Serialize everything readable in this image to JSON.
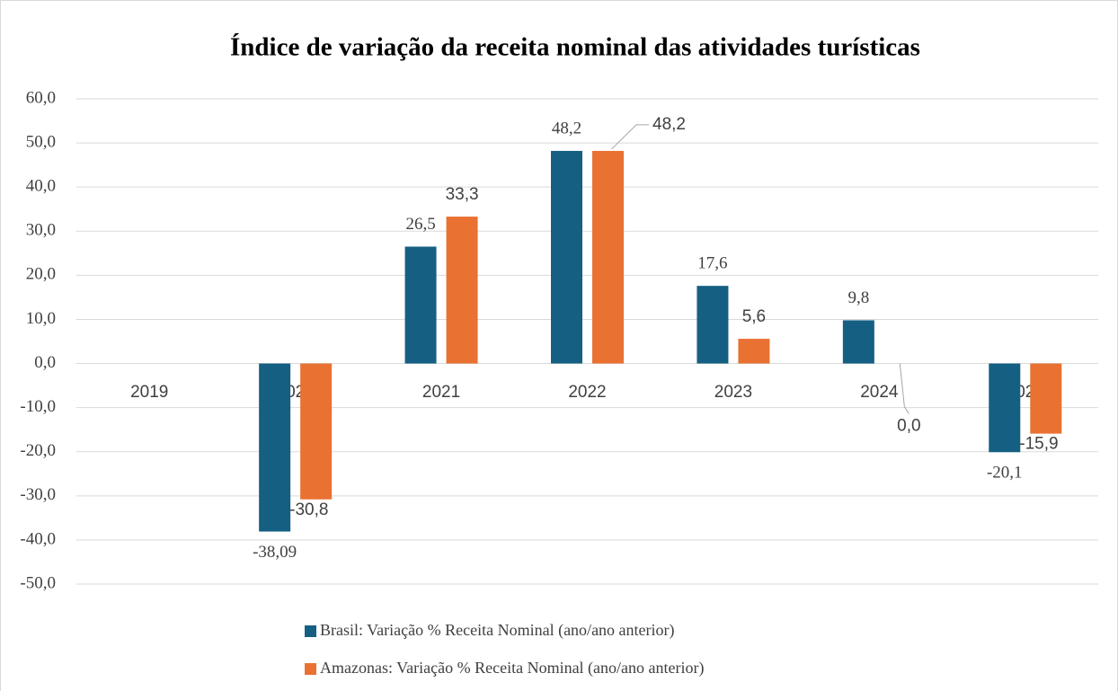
{
  "chart_data": {
    "type": "bar",
    "title": "Índice de variação da receita nominal das atividades turísticas",
    "categories": [
      "2019",
      "2020",
      "2021",
      "2022",
      "2023",
      "2024",
      "2025"
    ],
    "series": [
      {
        "name": "Brasil: Variação % Receita Nominal (ano/ano anterior)",
        "color": "#156082",
        "values": [
          null,
          -38.09,
          26.5,
          48.2,
          17.6,
          9.8,
          -20.1
        ],
        "value_labels": [
          null,
          "-38,09",
          "26,5",
          "48,2",
          "17,6",
          "9,8",
          "-20,1"
        ]
      },
      {
        "name": "Amazonas: Variação % Receita Nominal (ano/ano anterior)",
        "color": "#e97132",
        "values": [
          null,
          -30.8,
          33.3,
          48.2,
          5.6,
          0.0,
          -15.9
        ],
        "value_labels": [
          null,
          "-30,8",
          "33,3",
          "48,2",
          "5,6",
          "0,0",
          "-15,9"
        ]
      }
    ],
    "ylim": [
      -50,
      60
    ],
    "yticks": [
      {
        "value": -50,
        "label": "-50,0"
      },
      {
        "value": -40,
        "label": "-40,0"
      },
      {
        "value": -30,
        "label": "-30,0"
      },
      {
        "value": -20,
        "label": "-20,0"
      },
      {
        "value": -10,
        "label": "-10,0"
      },
      {
        "value": 0,
        "label": "0,0"
      },
      {
        "value": 10,
        "label": "10,0"
      },
      {
        "value": 20,
        "label": "20,0"
      },
      {
        "value": 30,
        "label": "30,0"
      },
      {
        "value": 40,
        "label": "40,0"
      },
      {
        "value": 50,
        "label": "50,0"
      },
      {
        "value": 60,
        "label": "60,0"
      }
    ],
    "grid": true,
    "legend": "bottom"
  }
}
